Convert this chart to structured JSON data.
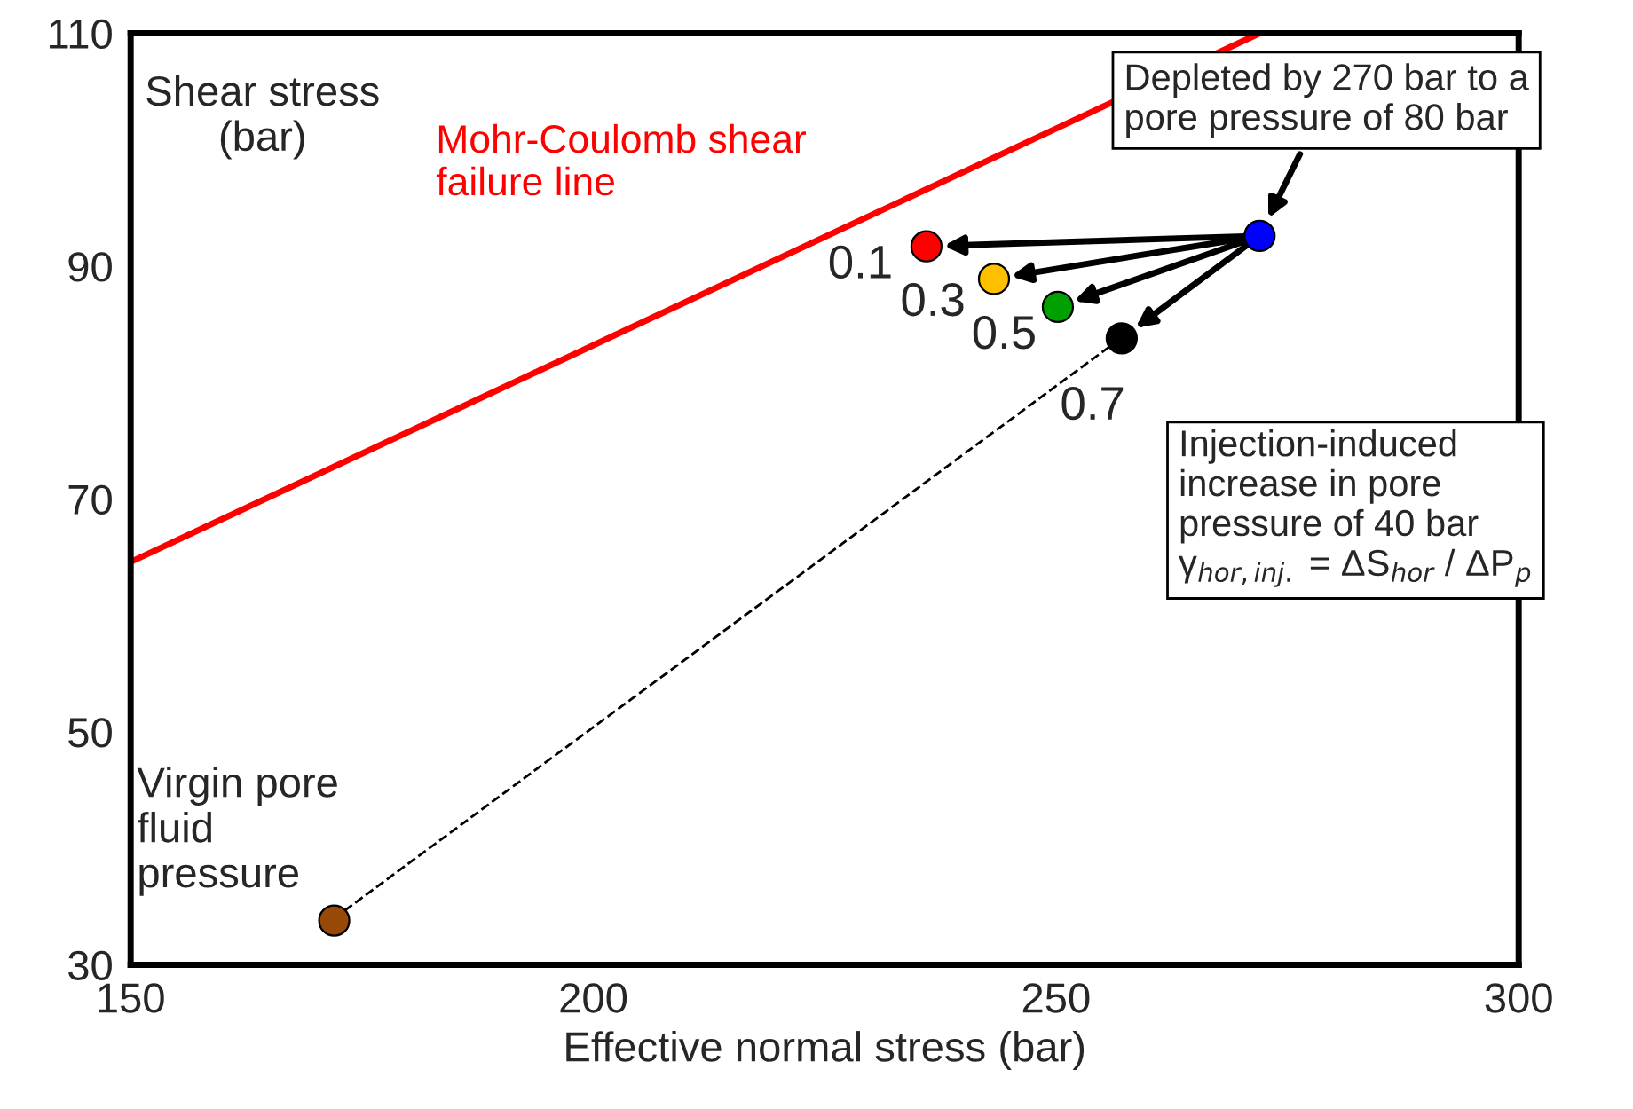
{
  "chart_data": {
    "type": "scatter",
    "xlabel": "Effective normal stress (bar)",
    "ylabel": "Shear stress\n(bar)",
    "xlim": [
      150,
      300
    ],
    "xticks": [
      150,
      200,
      250,
      300
    ],
    "ylim": [
      30,
      110
    ],
    "yticks": [
      30,
      50,
      70,
      90,
      110
    ],
    "grid": false,
    "series": [
      {
        "type": "line",
        "x": [
          172,
          257
        ],
        "values": [
          34,
          83.8
        ],
        "color": "#000000",
        "line_style": "dashed"
      },
      {
        "type": "line",
        "x": [
          150,
          272
        ],
        "values": [
          64.6,
          110
        ],
        "color": "#ff0000",
        "line_style": "solid"
      },
      {
        "marker": "circle",
        "x": [
          172,
          272,
          236,
          243.3,
          250.2,
          257.1
        ],
        "values": [
          33.8,
          92.6,
          91.7,
          88.9,
          86.5,
          83.8
        ],
        "colors": [
          "#984807",
          "#0000ff",
          "#ff0000",
          "#ffc000",
          "#00a000",
          "#000000"
        ]
      }
    ],
    "annotations": [
      "Mohr-Coulomb shear\nfailure line",
      {
        "text": "Virgin pore\nfluid\npressure",
        "x": 172,
        "y": 33.8
      },
      {
        "text": "Depleted by 270 bar to a\npore pressure of 80 bar",
        "x": 272,
        "y": 92.6
      },
      "Injection-induced\nincrease in pore\npressure of 40 bar\nγ$_{hor,inj.}$ = ΔS$_{hor}$ / ΔP$_{p}$",
      {
        "text": "0.1",
        "x": 236,
        "y": 91.7
      },
      {
        "text": "0.3",
        "x": 243.3,
        "y": 88.9
      },
      {
        "text": "0.5",
        "x": 250.2,
        "y": 86.5
      },
      {
        "text": "0.7",
        "x": 257.1,
        "y": 83.8
      }
    ]
  }
}
